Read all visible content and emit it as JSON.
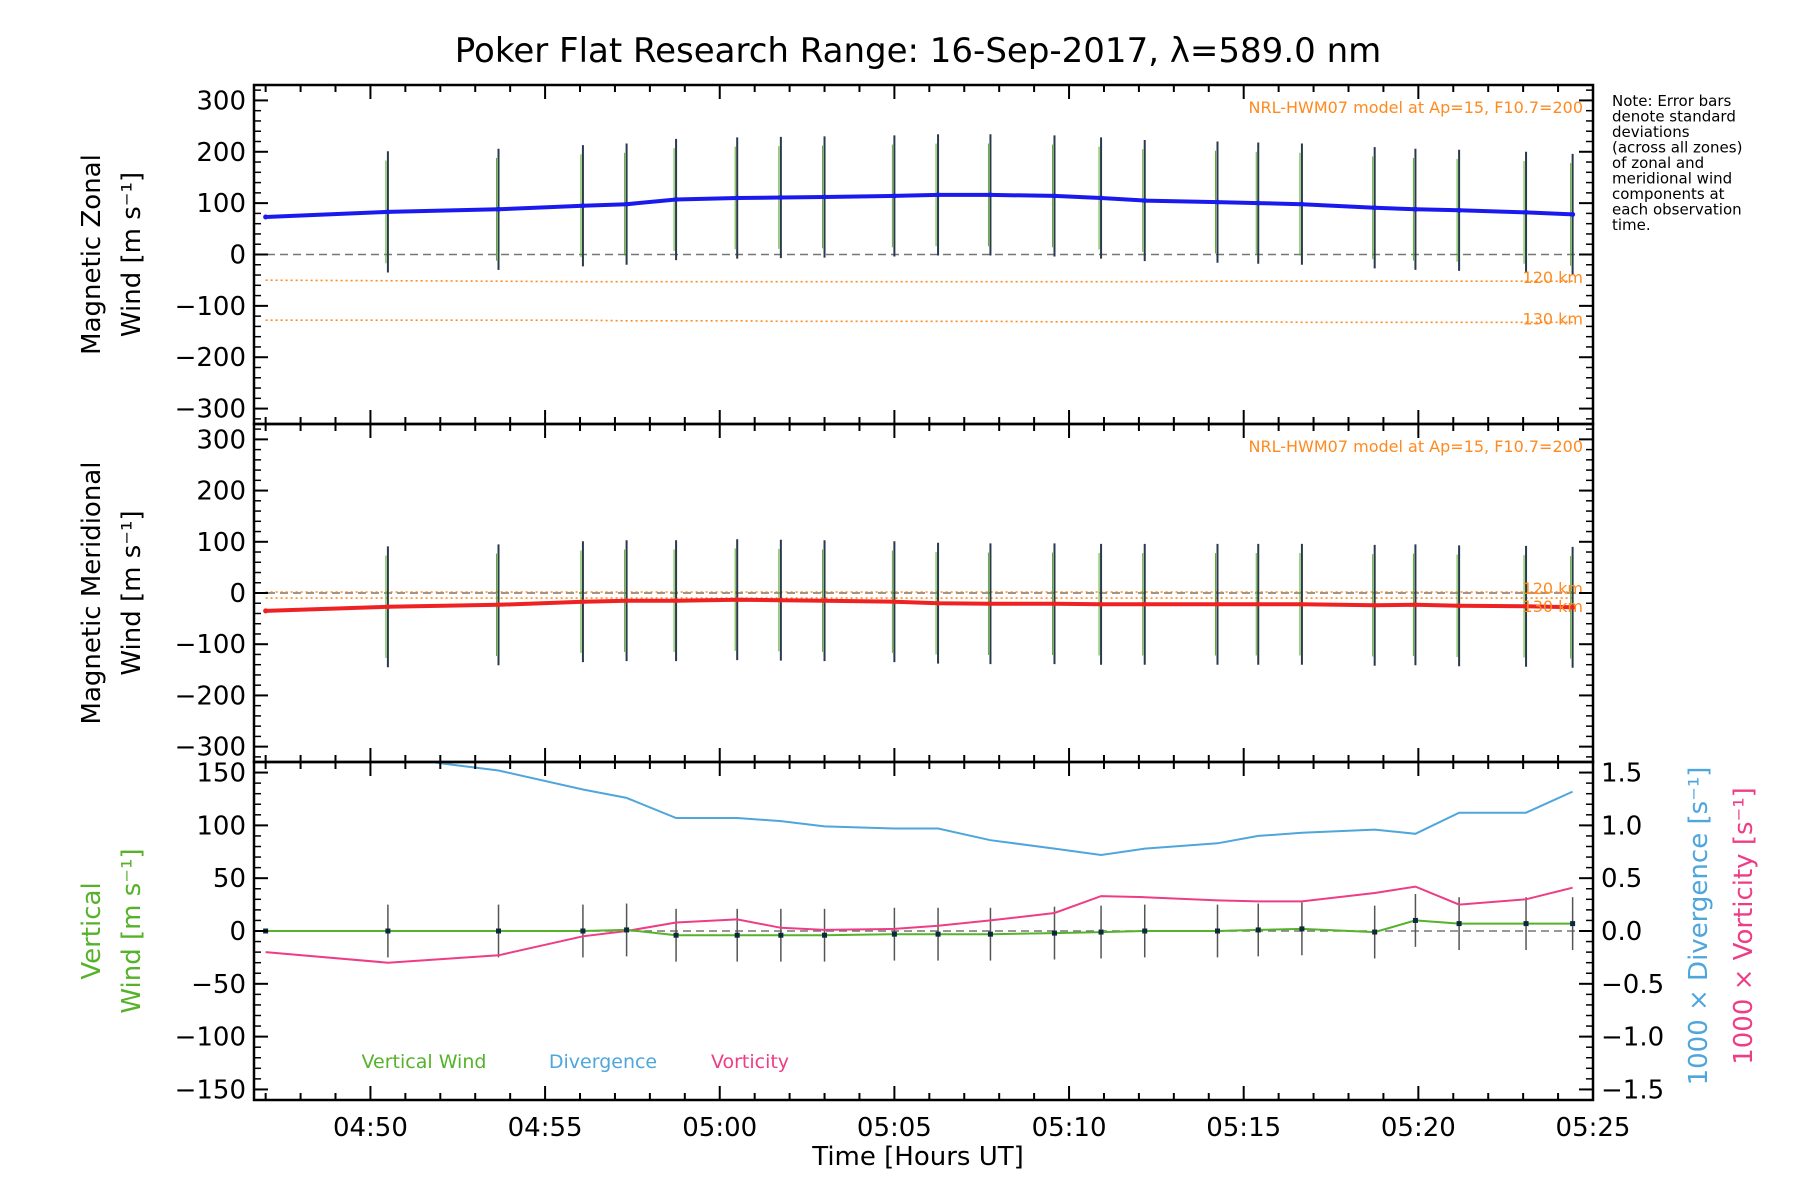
{
  "title": "Poker Flat Research Range: 16-Sep-2017, λ=589.0 nm",
  "note": [
    "Note: Error bars",
    "denote standard",
    "deviations",
    "(across all zones)",
    "of zonal and",
    "meridional wind",
    "components at",
    "each observation",
    "time."
  ],
  "model_label": "NRL-HWM07 model at Ap=15, F10.7=200",
  "alt_labels": [
    "120 km",
    "130 km"
  ],
  "xaxis": {
    "label": "Time [Hours UT]",
    "ticks": [
      "04:50",
      "04:55",
      "05:00",
      "05:05",
      "05:10",
      "05:15",
      "05:20",
      "05:25"
    ]
  },
  "colors": {
    "zonal": "#1a1aee",
    "meridional": "#ee2222",
    "vertical": "#55b22a",
    "divergence": "#4ea6dc",
    "vorticity": "#ee3d86",
    "model": "#ff8a1f",
    "samples": "#9f9fdf"
  },
  "chart_data": [
    {
      "type": "line",
      "panel": "zonal",
      "ylabel_lines": [
        "Magnetic Zonal",
        "Wind [m s⁻¹]"
      ],
      "ylim": [
        -330,
        330
      ],
      "yticks": [
        "300",
        "200",
        "100",
        "0",
        "−100",
        "−200",
        "−300"
      ],
      "x": [
        "04:47:00",
        "04:50:30",
        "04:53:40",
        "04:56:05",
        "04:57:20",
        "04:58:45",
        "05:00:30",
        "05:01:45",
        "05:03:00",
        "05:05:00",
        "05:06:15",
        "05:07:45",
        "05:09:35",
        "05:10:55",
        "05:12:10",
        "05:14:15",
        "05:15:25",
        "05:16:40",
        "05:18:45",
        "05:19:55",
        "05:21:10",
        "05:23:05",
        "05:24:25"
      ],
      "series": [
        {
          "name": "Magnetic Zonal Wind",
          "values": [
            73,
            83,
            88,
            95,
            98,
            107,
            110,
            111,
            112,
            114,
            116,
            116,
            114,
            110,
            105,
            102,
            100,
            98,
            91,
            88,
            86,
            82,
            78
          ]
        },
        {
          "name": "NRL-HWM07 model 120 km",
          "values": [
            -50,
            -51,
            -52,
            -53,
            -53,
            -53,
            -53,
            -53,
            -53,
            -53,
            -53,
            -53,
            -53,
            -53,
            -53,
            -52,
            -52,
            -52,
            -52,
            -52,
            -52,
            -52,
            -52
          ]
        },
        {
          "name": "NRL-HWM07 model 130 km",
          "values": [
            -128,
            -128,
            -128,
            -128,
            -129,
            -129,
            -129,
            -130,
            -130,
            -130,
            -130,
            -130,
            -131,
            -131,
            -131,
            -131,
            -131,
            -132,
            -132,
            -132,
            -132,
            -132,
            -132
          ]
        }
      ]
    },
    {
      "type": "line",
      "panel": "meridional",
      "ylabel_lines": [
        "Magnetic Meridional",
        "Wind [m s⁻¹]"
      ],
      "ylim": [
        -330,
        330
      ],
      "yticks": [
        "300",
        "200",
        "100",
        "0",
        "−100",
        "−200",
        "−300"
      ],
      "x": [
        "04:47:00",
        "04:50:30",
        "04:53:40",
        "04:56:05",
        "04:57:20",
        "04:58:45",
        "05:00:30",
        "05:01:45",
        "05:03:00",
        "05:05:00",
        "05:06:15",
        "05:07:45",
        "05:09:35",
        "05:10:55",
        "05:12:10",
        "05:14:15",
        "05:15:25",
        "05:16:40",
        "05:18:45",
        "05:19:55",
        "05:21:10",
        "05:23:05",
        "05:24:25"
      ],
      "series": [
        {
          "name": "Magnetic Meridional Wind",
          "values": [
            -35,
            -27,
            -23,
            -17,
            -15,
            -15,
            -13,
            -14,
            -15,
            -17,
            -20,
            -21,
            -21,
            -22,
            -22,
            -22,
            -22,
            -22,
            -24,
            -23,
            -25,
            -26,
            -28
          ]
        },
        {
          "name": "NRL-HWM07 model 120 km",
          "values": [
            2,
            2,
            2,
            2,
            2,
            2,
            2,
            2,
            2,
            2,
            2,
            2,
            2,
            2,
            2,
            2,
            2,
            2,
            2,
            2,
            2,
            2,
            2
          ]
        },
        {
          "name": "NRL-HWM07 model 130 km",
          "values": [
            -10,
            -10,
            -10,
            -10,
            -10,
            -10,
            -10,
            -10,
            -10,
            -10,
            -10,
            -10,
            -10,
            -10,
            -10,
            -10,
            -10,
            -10,
            -10,
            -10,
            -10,
            -10,
            -10
          ]
        }
      ]
    },
    {
      "type": "line",
      "panel": "vertical",
      "ylabel_lines": [
        "Vertical",
        "Wind [m s⁻¹]"
      ],
      "ylim": [
        -160,
        160
      ],
      "yticks": [
        "150",
        "100",
        "50",
        "0",
        "−50",
        "−100",
        "−150"
      ],
      "y2label_lines": [
        "1000 × Divergence [s⁻¹]",
        "1000 × Vorticity [s⁻¹]"
      ],
      "y2lim": [
        -1.6,
        1.6
      ],
      "y2ticks": [
        "1.5",
        "1.0",
        "0.5",
        "0.0",
        "−0.5",
        "−1.0",
        "−1.5"
      ],
      "legend": [
        "Vertical Wind",
        "Divergence",
        "Vorticity"
      ],
      "x": [
        "04:47:00",
        "04:50:30",
        "04:53:40",
        "04:56:05",
        "04:57:20",
        "04:58:45",
        "05:00:30",
        "05:01:45",
        "05:03:00",
        "05:05:00",
        "05:06:15",
        "05:07:45",
        "05:09:35",
        "05:10:55",
        "05:12:10",
        "05:14:15",
        "05:15:25",
        "05:16:40",
        "05:18:45",
        "05:19:55",
        "05:21:10",
        "05:23:05",
        "05:24:25"
      ],
      "series": [
        {
          "name": "Vertical Wind",
          "axis": "left",
          "values": [
            0,
            0,
            0,
            0,
            1,
            -4,
            -4,
            -4,
            -4,
            -3,
            -3,
            -3,
            -2,
            -1,
            0,
            0,
            1,
            2,
            -1,
            10,
            7,
            7,
            7
          ]
        },
        {
          "name": "Divergence",
          "axis": "right",
          "values": [
            1.65,
            1.65,
            1.52,
            1.34,
            1.26,
            1.07,
            1.07,
            1.04,
            0.99,
            0.97,
            0.97,
            0.86,
            0.78,
            0.72,
            0.78,
            0.83,
            0.9,
            0.93,
            0.96,
            0.92,
            1.12,
            1.12,
            1.32
          ]
        },
        {
          "name": "Vorticity",
          "axis": "right",
          "values": [
            -0.2,
            -0.3,
            -0.23,
            -0.05,
            0.0,
            0.08,
            0.11,
            0.03,
            0.01,
            0.02,
            0.05,
            0.1,
            0.17,
            0.33,
            0.32,
            0.29,
            0.28,
            0.28,
            0.36,
            0.42,
            0.25,
            0.3,
            0.41
          ]
        }
      ]
    }
  ]
}
